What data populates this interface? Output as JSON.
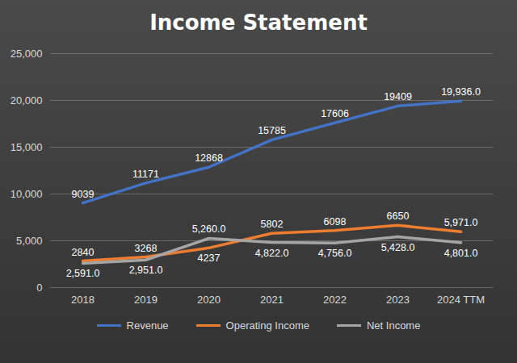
{
  "chart_data": {
    "type": "line",
    "title": "Income Statement",
    "categories": [
      "2018",
      "2019",
      "2020",
      "2021",
      "2022",
      "2023",
      "2024 TTM"
    ],
    "series": [
      {
        "name": "Revenue",
        "color": "#4472c4",
        "values": [
          9039,
          11171,
          12868,
          15785,
          17606,
          19409,
          19936
        ],
        "value_labels": [
          "9039",
          "11171",
          "12868",
          "15785",
          "17606",
          "19409",
          "19,936.0"
        ]
      },
      {
        "name": "Operating Income",
        "color": "#ed7d31",
        "values": [
          2840,
          3268,
          4237,
          5802,
          6098,
          6650,
          5971
        ],
        "value_labels": [
          "2840",
          "3268",
          "4237",
          "5802",
          "6098",
          "6650",
          "5,971.0"
        ]
      },
      {
        "name": "Net Income",
        "color": "#a5a5a5",
        "values": [
          2591,
          2951,
          5260,
          4822,
          4756,
          5428,
          4801
        ],
        "value_labels": [
          "2,591.0",
          "2,951.0",
          "5,260.0",
          "4,822.0",
          "4,756.0",
          "5,428.0",
          "4,801.0"
        ]
      }
    ],
    "ylim": [
      0,
      25000
    ],
    "yticks": [
      0,
      5000,
      10000,
      15000,
      20000,
      25000
    ],
    "grid": true,
    "data_labels": true,
    "legend": "bottom"
  }
}
